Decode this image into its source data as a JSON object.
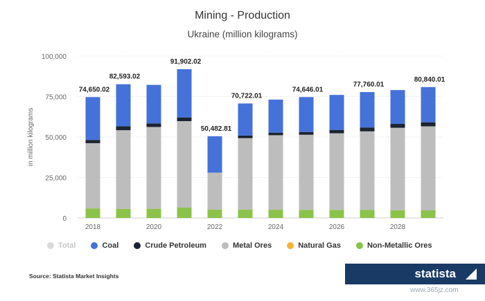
{
  "header": {
    "title": "Mining - Production",
    "subtitle": "Ukraine (million kilograms)"
  },
  "chart_data": {
    "type": "bar",
    "stacked": true,
    "title": "Mining - Production",
    "subtitle": "Ukraine (million kilograms)",
    "xlabel": "",
    "ylabel": "in million kilograms",
    "ylim": [
      0,
      100000
    ],
    "yticks": [
      0,
      25000,
      50000,
      75000,
      100000
    ],
    "ytick_labels": [
      "0",
      "25,000",
      "50,000",
      "75,000",
      "100,000"
    ],
    "categories": [
      "2018",
      "2019",
      "2020",
      "2021",
      "2022",
      "2023",
      "2024",
      "2025",
      "2026",
      "2027",
      "2028",
      "2029"
    ],
    "xtick_labels": [
      "2018",
      "2020",
      "2022",
      "2024",
      "2026",
      "2028"
    ],
    "grid": true,
    "legend_position": "bottom",
    "series": [
      {
        "name": "Non-Metallic Ores",
        "color": "#8bc34a",
        "values": [
          5900,
          5600,
          5700,
          6400,
          5200,
          5200,
          5100,
          5000,
          5000,
          4900,
          4800,
          4700
        ]
      },
      {
        "name": "Natural Gas",
        "color": "#f5b335",
        "values": [
          0,
          0,
          0,
          0,
          0,
          0,
          0,
          0,
          0,
          0,
          0,
          0
        ]
      },
      {
        "name": "Metal Ores",
        "color": "#bdbdbd",
        "values": [
          40300,
          48600,
          50500,
          53400,
          22800,
          44100,
          46000,
          46400,
          47300,
          48600,
          50900,
          51900
        ]
      },
      {
        "name": "Crude Petroleum",
        "color": "#1c2331",
        "values": [
          2000,
          2400,
          2200,
          2300,
          0,
          1600,
          1600,
          1700,
          2000,
          2400,
          2400,
          2500
        ]
      },
      {
        "name": "Coal",
        "color": "#4572d9",
        "values": [
          26450.02,
          25993.02,
          23800,
          29802.02,
          22482.81,
          19822.01,
          20400,
          21546.01,
          21700,
          21860.01,
          20900,
          21740.01
        ]
      }
    ],
    "totals": [
      {
        "year": "2018",
        "label": "74,650.02"
      },
      {
        "year": "2019",
        "label": "82,593.02"
      },
      {
        "year": "2021",
        "label": "91,902.02"
      },
      {
        "year": "2022",
        "label": "50,482.81"
      },
      {
        "year": "2023",
        "label": "70,722.01"
      },
      {
        "year": "2025",
        "label": "74,646.01"
      },
      {
        "year": "2027",
        "label": "77,760.01"
      },
      {
        "year": "2029",
        "label": "80,840.01"
      }
    ]
  },
  "legend": {
    "items": [
      {
        "label": "Total",
        "color": "#d9d9d9",
        "active": false
      },
      {
        "label": "Coal",
        "color": "#4572d9",
        "active": true
      },
      {
        "label": "Crude Petroleum",
        "color": "#1c2331",
        "active": true
      },
      {
        "label": "Metal Ores",
        "color": "#bdbdbd",
        "active": true
      },
      {
        "label": "Natural Gas",
        "color": "#f5b335",
        "active": true
      },
      {
        "label": "Non-Metallic Ores",
        "color": "#8bc34a",
        "active": true
      }
    ]
  },
  "footer": {
    "source": "Source: Statista Market Insights",
    "brand": "statista",
    "watermark": "www.365jz.com"
  }
}
